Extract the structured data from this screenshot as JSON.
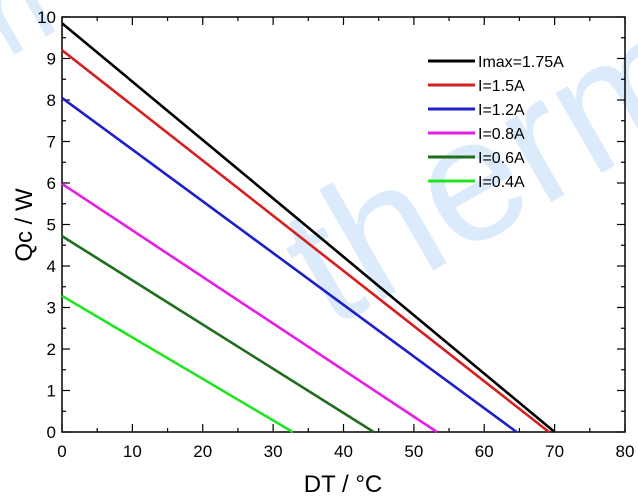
{
  "watermark": {
    "text": "therm",
    "corner_text": "m",
    "color": "#dcebfb"
  },
  "chart_data": {
    "type": "line",
    "title": "",
    "xlabel": "DT / °C",
    "ylabel": "Qc / W",
    "xlim": [
      0,
      80
    ],
    "ylim": [
      0,
      10
    ],
    "xticks": [
      0,
      10,
      20,
      30,
      40,
      50,
      60,
      70,
      80
    ],
    "yticks": [
      0,
      1,
      2,
      3,
      4,
      5,
      6,
      7,
      8,
      9,
      10
    ],
    "grid": false,
    "legend_position": "top-right",
    "series": [
      {
        "name": "Imax=1.75A",
        "color": "#000000",
        "x": [
          0,
          70
        ],
        "y": [
          9.85,
          0
        ]
      },
      {
        "name": "I=1.5A",
        "color": "#d42020",
        "x": [
          0,
          69.2
        ],
        "y": [
          9.2,
          0
        ]
      },
      {
        "name": "I=1.2A",
        "color": "#1f1fc8",
        "x": [
          0,
          64.6
        ],
        "y": [
          8.05,
          0
        ]
      },
      {
        "name": "I=0.8A",
        "color": "#e41ee4",
        "x": [
          0,
          53.3
        ],
        "y": [
          5.98,
          0
        ]
      },
      {
        "name": "I=0.6A",
        "color": "#1e6e1e",
        "x": [
          0,
          44.3
        ],
        "y": [
          4.72,
          0
        ]
      },
      {
        "name": "I=0.4A",
        "color": "#22e422",
        "x": [
          0,
          32.8
        ],
        "y": [
          3.28,
          0
        ]
      }
    ]
  }
}
